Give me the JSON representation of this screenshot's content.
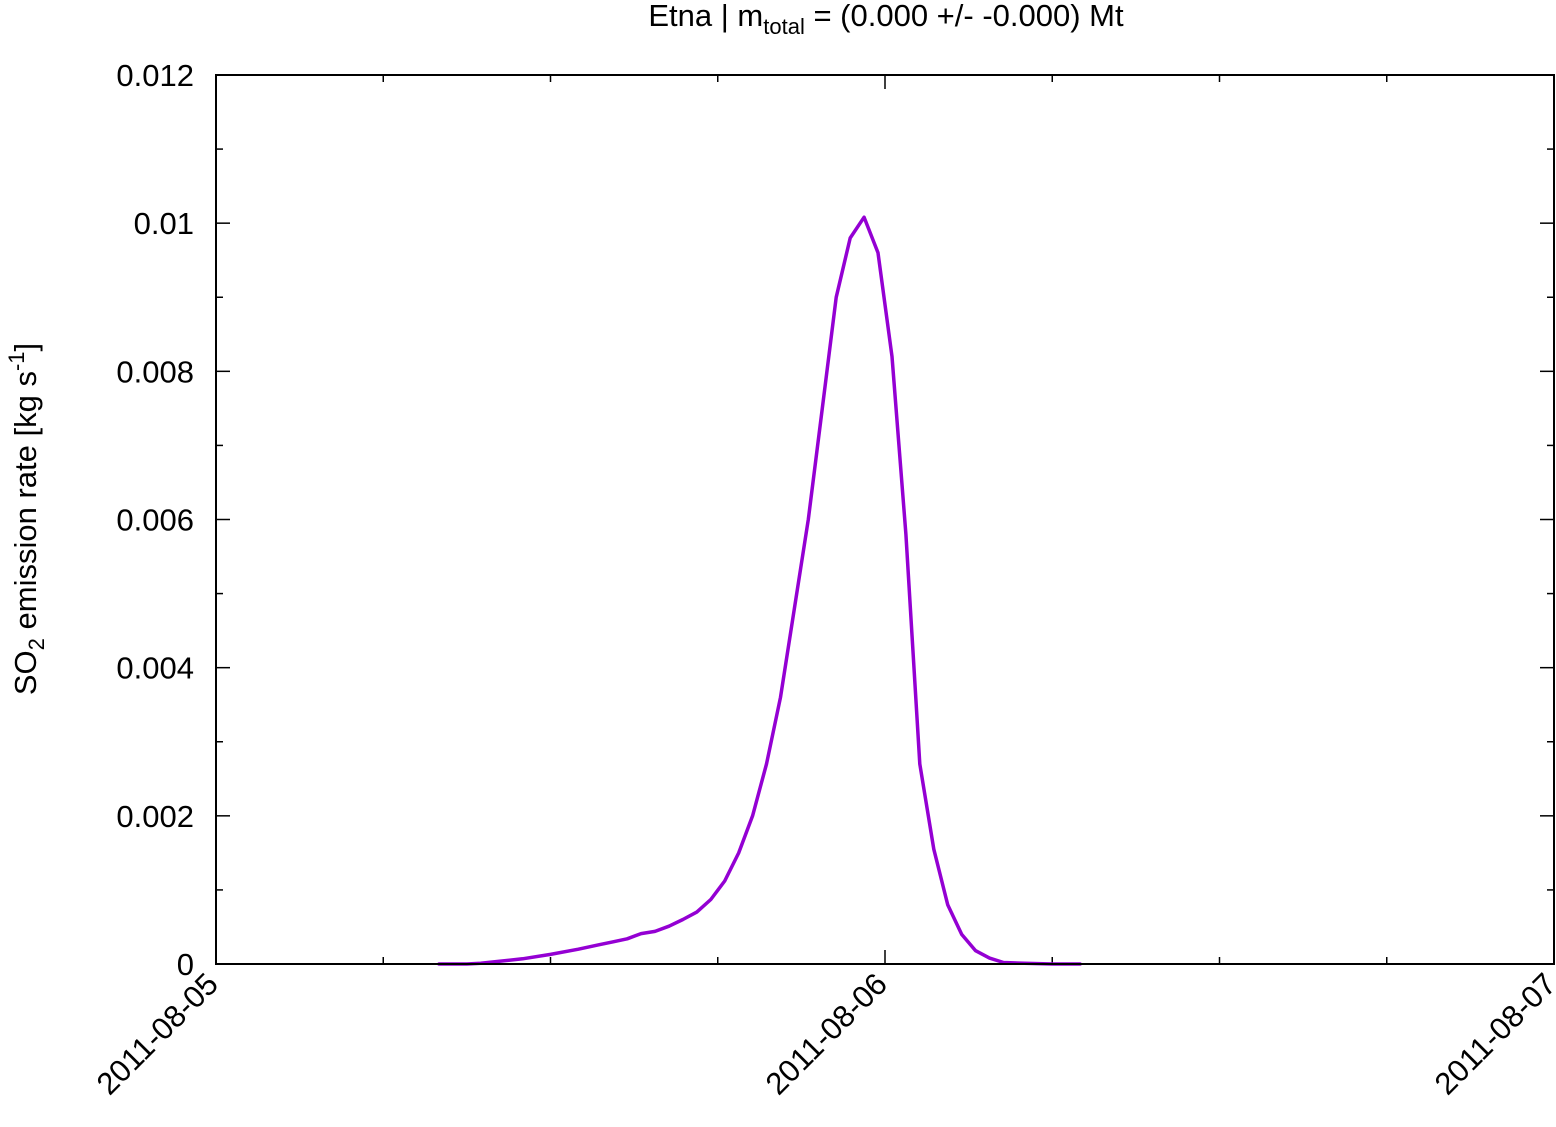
{
  "chart_data": {
    "type": "line",
    "title": {
      "prefix": "Etna | m",
      "subscript": "total",
      "suffix": " = (0.000 +/- -0.000) Mt"
    },
    "ylabel": {
      "prefix": "SO",
      "subscript": "2",
      "middle": " emission rate [kg s",
      "superscript": "-1",
      "suffix": "]"
    },
    "xlim": [
      "2011-08-05T00:00",
      "2011-08-07T00:00"
    ],
    "ylim": [
      0,
      0.012
    ],
    "x_tick_labels": [
      "2011-08-05",
      "2011-08-06",
      "2011-08-07"
    ],
    "y_tick_labels": [
      "0",
      "0.002",
      "0.004",
      "0.006",
      "0.008",
      "0.01",
      "0.012"
    ],
    "grid": false,
    "series": [
      {
        "color": "#9400d3",
        "x": [
          "2011-08-05T08:00",
          "2011-08-05T09:00",
          "2011-08-05T09:30",
          "2011-08-05T10:00",
          "2011-08-05T11:00",
          "2011-08-05T12:00",
          "2011-08-05T13:00",
          "2011-08-05T13:45",
          "2011-08-05T14:15",
          "2011-08-05T14:45",
          "2011-08-05T15:15",
          "2011-08-05T15:45",
          "2011-08-05T16:15",
          "2011-08-05T16:45",
          "2011-08-05T17:15",
          "2011-08-05T17:45",
          "2011-08-05T18:15",
          "2011-08-05T18:45",
          "2011-08-05T19:15",
          "2011-08-05T19:45",
          "2011-08-05T20:15",
          "2011-08-05T20:45",
          "2011-08-05T21:15",
          "2011-08-05T21:45",
          "2011-08-05T22:15",
          "2011-08-05T22:45",
          "2011-08-05T23:15",
          "2011-08-05T23:45",
          "2011-08-06T00:15",
          "2011-08-06T00:45",
          "2011-08-06T01:15",
          "2011-08-06T01:45",
          "2011-08-06T02:15",
          "2011-08-06T02:45",
          "2011-08-06T03:15",
          "2011-08-06T03:45",
          "2011-08-06T04:15",
          "2011-08-06T05:00",
          "2011-08-06T06:00",
          "2011-08-06T07:00"
        ],
        "y": [
          0.0,
          0.0,
          1e-05,
          3e-05,
          7e-05,
          0.00013,
          0.0002,
          0.00026,
          0.0003,
          0.00034,
          0.00041,
          0.00044,
          0.00051,
          0.0006,
          0.0007,
          0.00087,
          0.00112,
          0.0015,
          0.002,
          0.0027,
          0.0036,
          0.0048,
          0.006,
          0.0075,
          0.009,
          0.0098,
          0.01008,
          0.0096,
          0.0082,
          0.0058,
          0.0027,
          0.00155,
          0.0008,
          0.0004,
          0.00018,
          8e-05,
          2e-05,
          1e-05,
          0.0,
          0.0
        ]
      }
    ]
  }
}
